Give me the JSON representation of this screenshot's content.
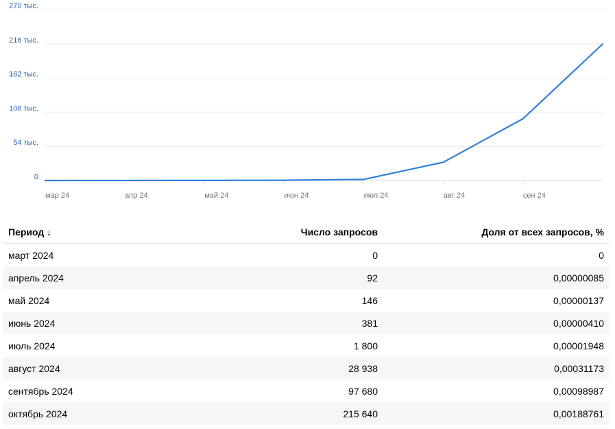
{
  "chart_data": {
    "type": "line",
    "categories": [
      "мар 24",
      "апр 24",
      "май 24",
      "июн 24",
      "июл 24",
      "авг 24",
      "сен 24",
      "окт 24"
    ],
    "x_tick_labels": [
      "мар 24",
      "апр 24",
      "май 24",
      "июн 24",
      "июл 24",
      "авг 24",
      "сен 24"
    ],
    "values": [
      0,
      92,
      146,
      381,
      1800,
      28938,
      97680,
      215640
    ],
    "y_tick_values": [
      0,
      54000,
      108000,
      162000,
      216000,
      270000
    ],
    "y_tick_labels": [
      "0",
      "54 тыс.",
      "108 тыс.",
      "162 тыс.",
      "216 тыс.",
      "270 тыс."
    ],
    "ylim": [
      0,
      270000
    ],
    "grid": "horizontal",
    "title": "",
    "xlabel": "",
    "ylabel": "",
    "line_color": "#2f7fd6"
  },
  "table": {
    "headers": {
      "period": "Период",
      "sort_icon": "↓",
      "count": "Число запросов",
      "share": "Доля от всех запросов, %"
    },
    "rows": [
      {
        "period": "март 2024",
        "count": "0",
        "share": "0"
      },
      {
        "period": "апрель 2024",
        "count": "92",
        "share": "0,00000085"
      },
      {
        "period": "май 2024",
        "count": "146",
        "share": "0,00000137"
      },
      {
        "period": "июнь 2024",
        "count": "381",
        "share": "0,00000410"
      },
      {
        "period": "июль 2024",
        "count": "1 800",
        "share": "0,00001948"
      },
      {
        "period": "август 2024",
        "count": "28 938",
        "share": "0,00031173"
      },
      {
        "period": "сентябрь 2024",
        "count": "97 680",
        "share": "0,00098987"
      },
      {
        "period": "октябрь 2024",
        "count": "215 640",
        "share": "0,00188761"
      }
    ]
  }
}
